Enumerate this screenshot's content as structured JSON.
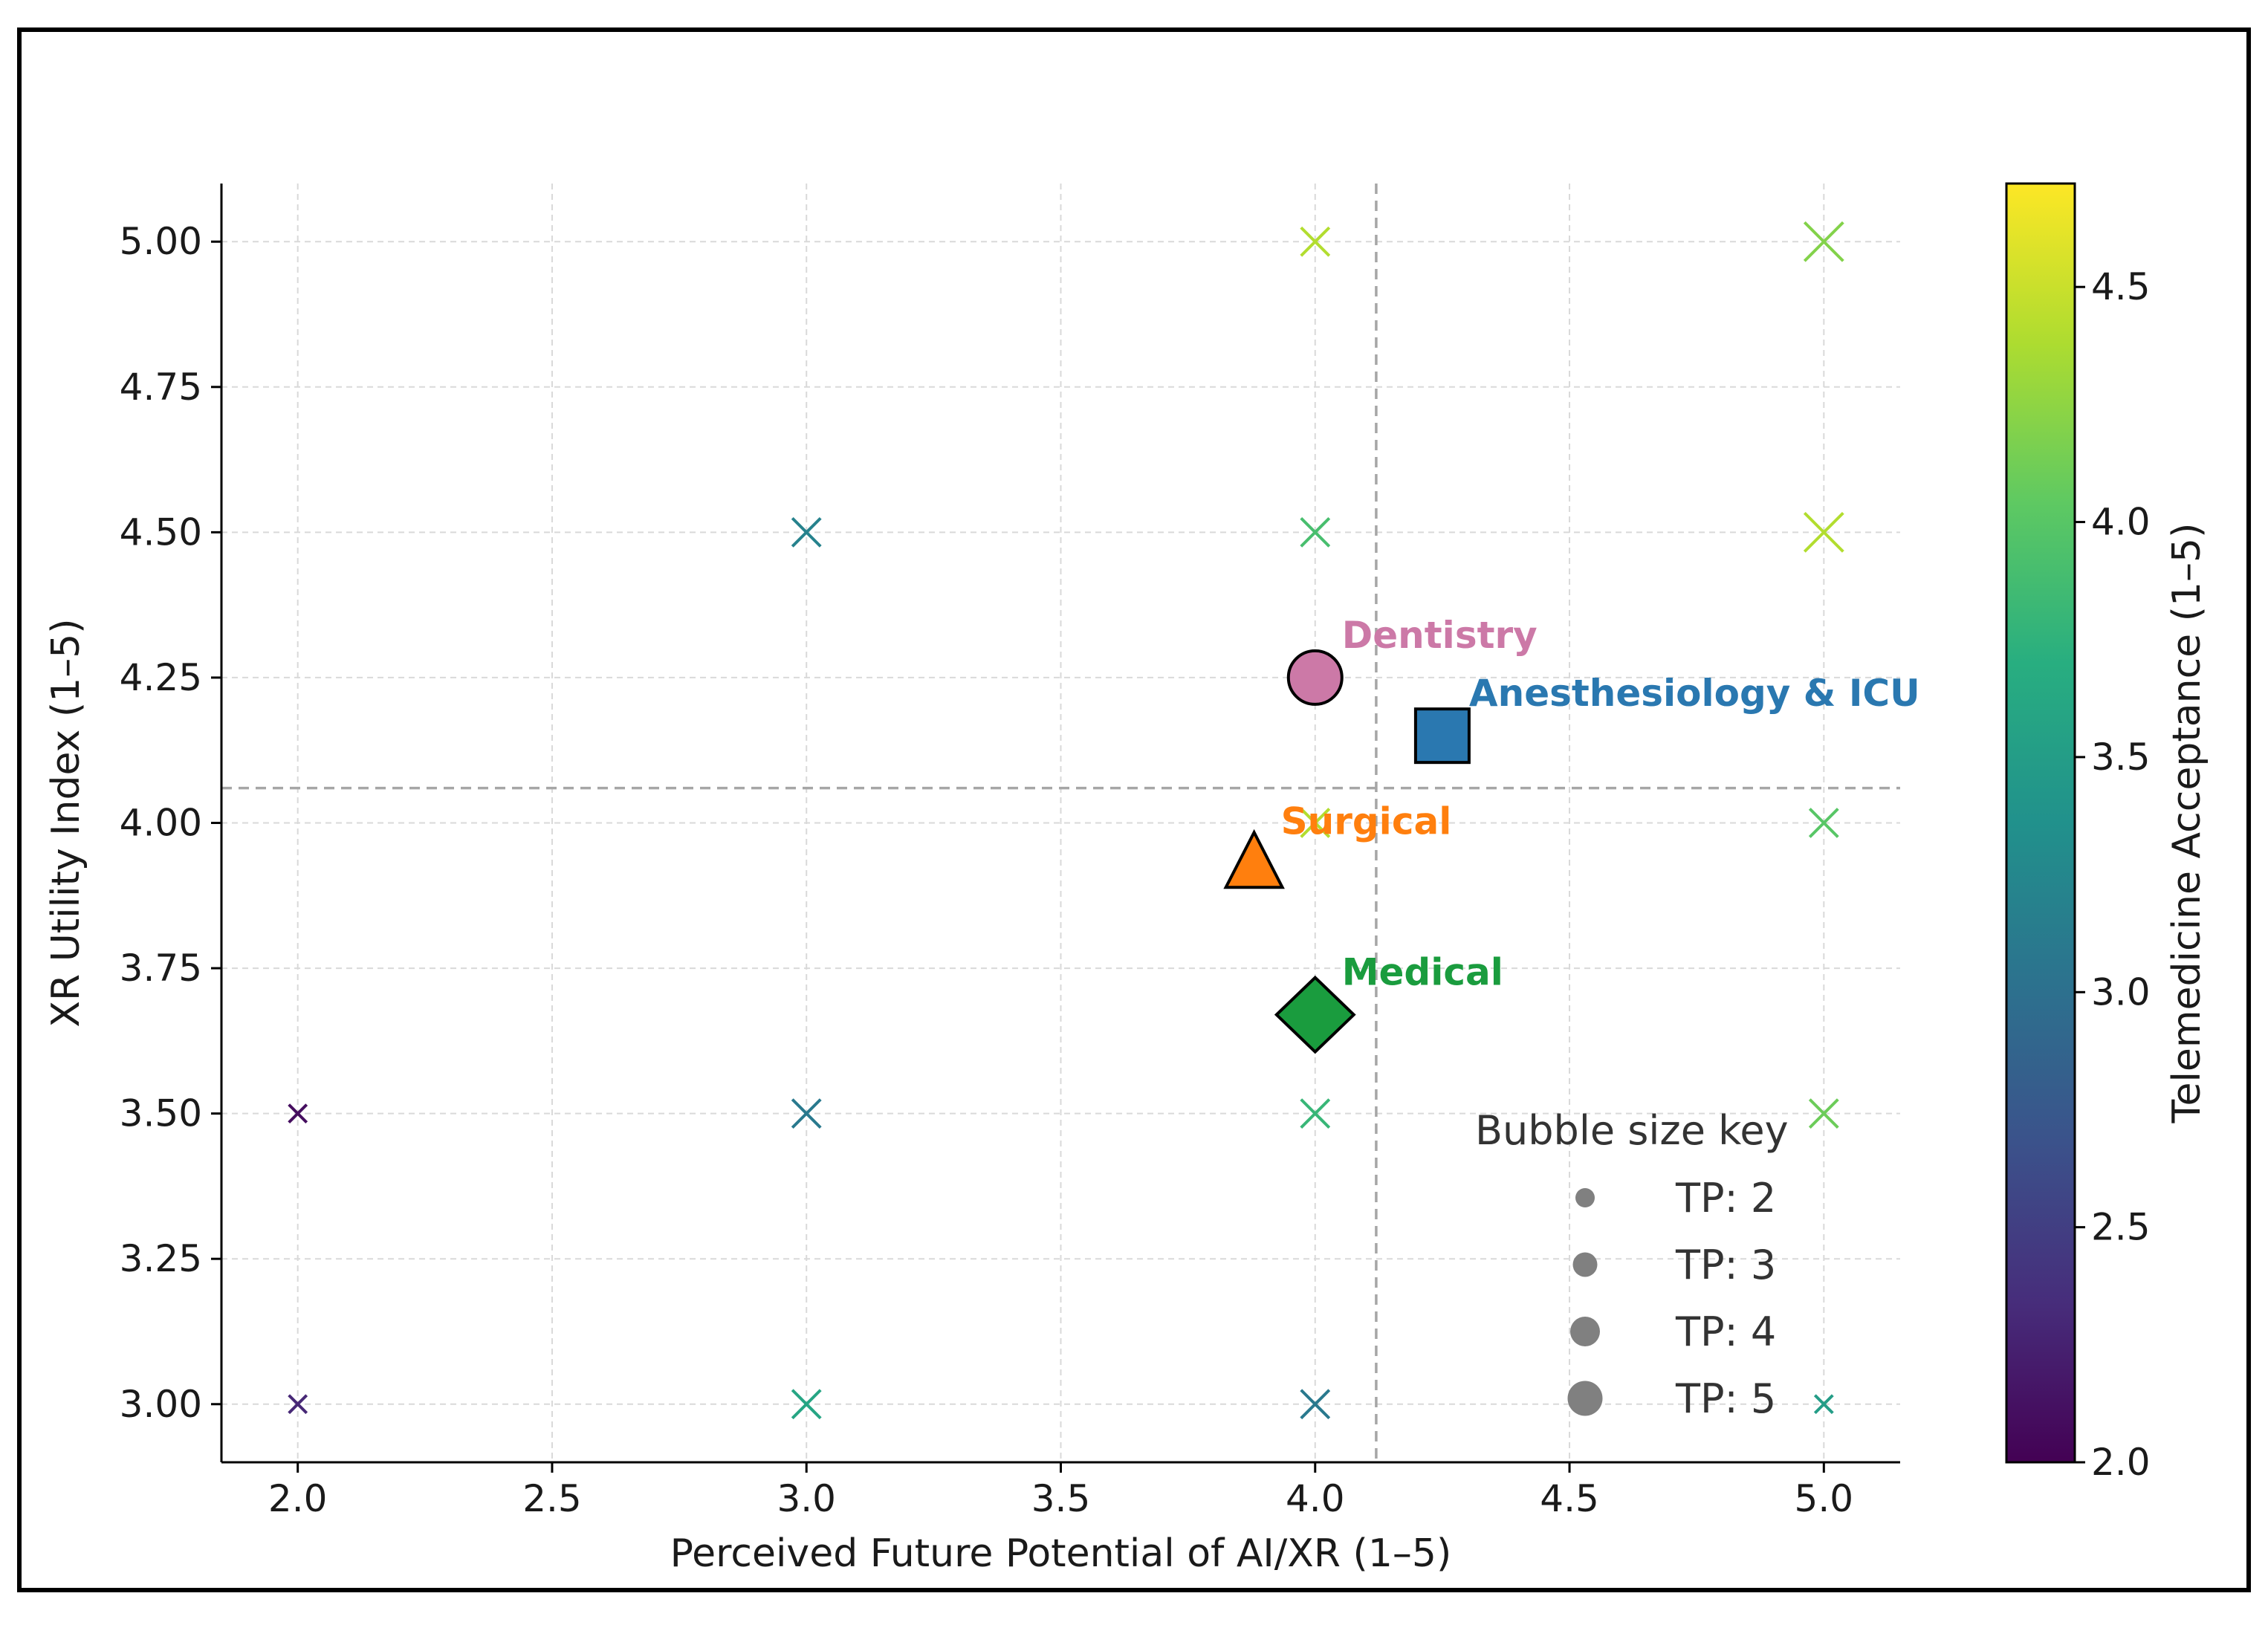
{
  "chart_data": {
    "type": "scatter",
    "xlabel": "Perceived Future Potential of AI/XR (1–5)",
    "ylabel": "XR Utility Index (1–5)",
    "xlim": [
      1.85,
      5.15
    ],
    "ylim": [
      2.9,
      5.1
    ],
    "x_ticks": [
      2.0,
      2.5,
      3.0,
      3.5,
      4.0,
      4.5,
      5.0
    ],
    "x_tick_labels": [
      "2.0",
      "2.5",
      "3.0",
      "3.5",
      "4.0",
      "4.5",
      "5.0"
    ],
    "y_ticks": [
      3.0,
      3.25,
      3.5,
      3.75,
      4.0,
      4.25,
      4.5,
      4.75,
      5.0
    ],
    "y_tick_labels": [
      "3.00",
      "3.25",
      "3.50",
      "3.75",
      "4.00",
      "4.25",
      "4.50",
      "4.75",
      "5.00"
    ],
    "grid": true,
    "reference_lines": {
      "x_mean": 4.12,
      "y_mean": 4.06
    },
    "individual_points": [
      {
        "x": 2.0,
        "y": 3.0,
        "telemedicine": 2.3,
        "tp": 2
      },
      {
        "x": 2.0,
        "y": 3.5,
        "telemedicine": 2.1,
        "tp": 2
      },
      {
        "x": 3.0,
        "y": 3.0,
        "telemedicine": 3.6,
        "tp": 3
      },
      {
        "x": 3.0,
        "y": 3.5,
        "telemedicine": 3.1,
        "tp": 3
      },
      {
        "x": 3.0,
        "y": 4.5,
        "telemedicine": 3.2,
        "tp": 3
      },
      {
        "x": 4.0,
        "y": 3.0,
        "telemedicine": 3.1,
        "tp": 3
      },
      {
        "x": 4.0,
        "y": 3.5,
        "telemedicine": 3.8,
        "tp": 3
      },
      {
        "x": 4.0,
        "y": 4.0,
        "telemedicine": 4.4,
        "tp": 3
      },
      {
        "x": 4.0,
        "y": 4.5,
        "telemedicine": 3.9,
        "tp": 3
      },
      {
        "x": 4.0,
        "y": 5.0,
        "telemedicine": 4.4,
        "tp": 3
      },
      {
        "x": 5.0,
        "y": 3.0,
        "telemedicine": 3.5,
        "tp": 2
      },
      {
        "x": 5.0,
        "y": 3.5,
        "telemedicine": 4.1,
        "tp": 3
      },
      {
        "x": 5.0,
        "y": 4.0,
        "telemedicine": 4.0,
        "tp": 3
      },
      {
        "x": 5.0,
        "y": 4.5,
        "telemedicine": 4.4,
        "tp": 4
      },
      {
        "x": 5.0,
        "y": 5.0,
        "telemedicine": 4.2,
        "tp": 4
      }
    ],
    "group_means": [
      {
        "name": "Dentistry",
        "x": 4.0,
        "y": 4.25,
        "marker": "circle",
        "color": "#cc79a7"
      },
      {
        "name": "Anesthesiology & ICU",
        "x": 4.25,
        "y": 4.15,
        "marker": "square",
        "color": "#2a78b0"
      },
      {
        "name": "Surgical",
        "x": 3.88,
        "y": 3.93,
        "marker": "triangle",
        "color": "#ff7f0e"
      },
      {
        "name": "Medical",
        "x": 4.0,
        "y": 3.67,
        "marker": "diamond",
        "color": "#1a9c3e"
      }
    ],
    "size_legend": {
      "title": "Bubble size key",
      "entries": [
        {
          "label": "TP: 2",
          "tp": 2
        },
        {
          "label": "TP: 3",
          "tp": 3
        },
        {
          "label": "TP: 4",
          "tp": 4
        },
        {
          "label": "TP: 5",
          "tp": 5
        }
      ],
      "placement": "lower-right"
    },
    "colorbar": {
      "label": "Telemedicine Acceptance (1–5)",
      "colormap": "viridis",
      "range": [
        2.0,
        4.72
      ],
      "ticks": [
        2.0,
        2.5,
        3.0,
        3.5,
        4.0,
        4.5
      ],
      "tick_labels": [
        "2.0",
        "2.5",
        "3.0",
        "3.5",
        "4.0",
        "4.5"
      ]
    }
  }
}
